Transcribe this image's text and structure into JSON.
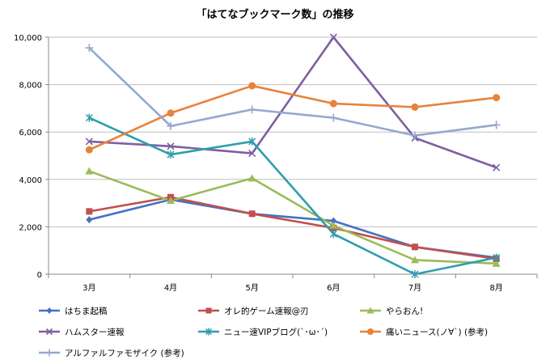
{
  "chart_data": {
    "type": "line",
    "title": "「はてなブックマーク数」の推移",
    "categories": [
      "3月",
      "4月",
      "5月",
      "6月",
      "7月",
      "8月"
    ],
    "ylim": [
      0,
      10000
    ],
    "yticks": [
      0,
      2000,
      4000,
      6000,
      8000,
      10000
    ],
    "ytick_labels": [
      "0",
      "2,000",
      "4,000",
      "6,000",
      "8,000",
      "10,000"
    ],
    "xlabel": "",
    "ylabel": "",
    "legend_position": "bottom",
    "series": [
      {
        "name": "はちま起稿",
        "color": "#4472C4",
        "marker": "diamond",
        "values": [
          2300,
          3150,
          2550,
          2250,
          1150,
          700
        ]
      },
      {
        "name": "オレ的ゲーム速報@刃",
        "color": "#C0504D",
        "marker": "square",
        "values": [
          2650,
          3250,
          2550,
          1950,
          1150,
          650
        ]
      },
      {
        "name": "やらおん!",
        "color": "#9BBB59",
        "marker": "triangle",
        "values": [
          4350,
          3100,
          4050,
          2050,
          600,
          450
        ]
      },
      {
        "name": "ハムスター速報",
        "color": "#7F5FA0",
        "marker": "x",
        "values": [
          5600,
          5400,
          5100,
          10000,
          5750,
          4500
        ]
      },
      {
        "name": "ニュー速VIPブログ(`･ω･´)",
        "color": "#2E9EAD",
        "marker": "star",
        "values": [
          6600,
          5050,
          5600,
          1700,
          0,
          700
        ]
      },
      {
        "name": "痛いニュース(ノ∀`) (参考)",
        "color": "#E8823A",
        "marker": "circle",
        "values": [
          5250,
          6800,
          7950,
          7200,
          7050,
          7450
        ]
      },
      {
        "name": "アルファルファモザイク (参考)",
        "color": "#93A9CF",
        "marker": "plus",
        "values": [
          9550,
          6250,
          6950,
          6600,
          5850,
          6300
        ]
      }
    ]
  }
}
